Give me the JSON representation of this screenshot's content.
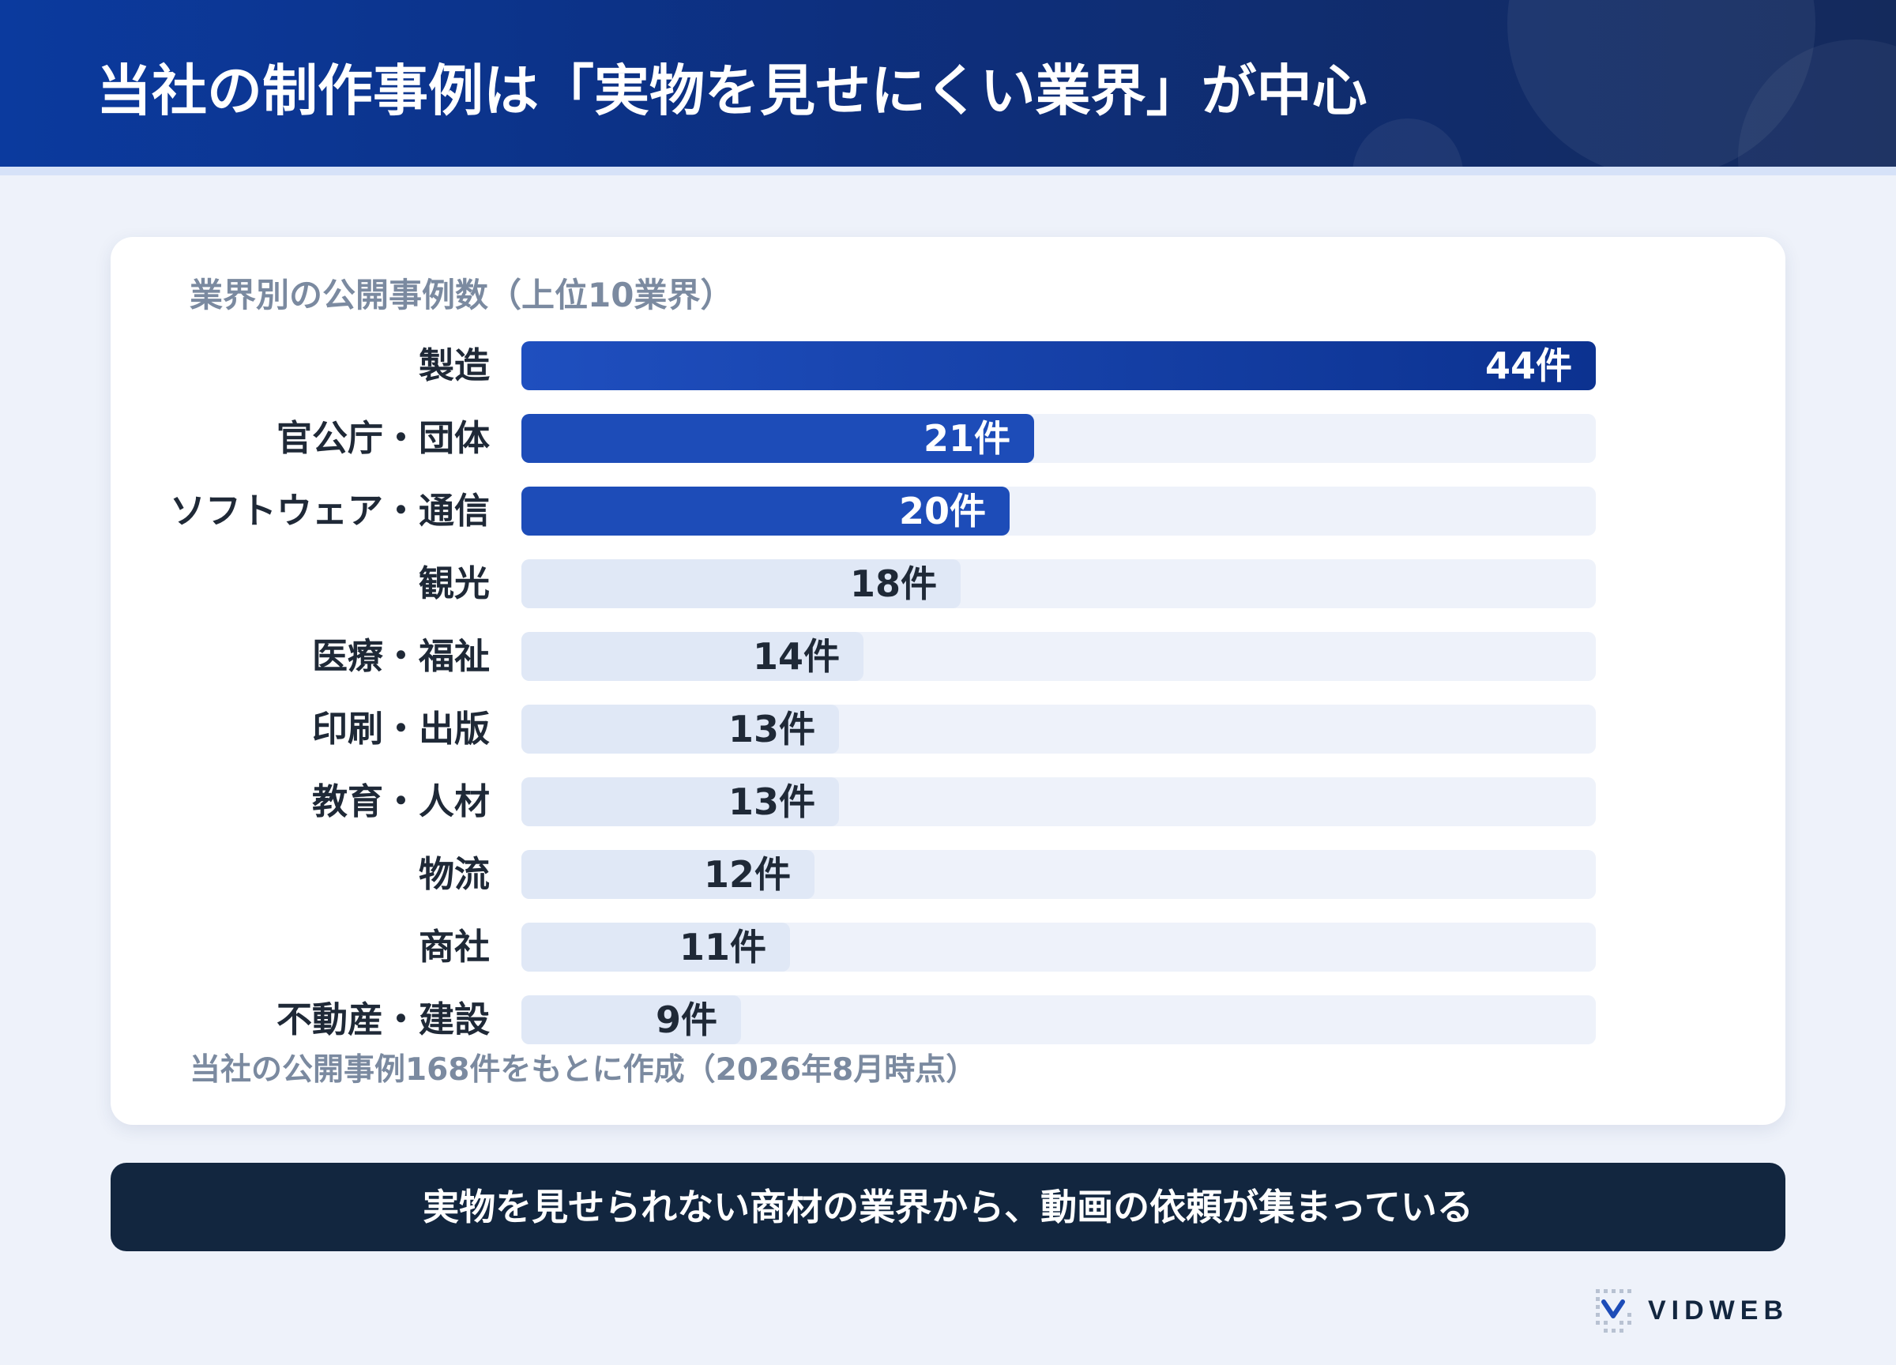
{
  "header": {
    "title": "当社の制作事例は「実物を見せにくい業界」が中心",
    "accent": "#0b3a9e"
  },
  "chart_data": {
    "type": "bar",
    "orientation": "horizontal",
    "title": "業界別の公開事例数（上位10業界）",
    "source_note": "当社の公開事例168件をもとに作成（2026年8月時点）",
    "unit": "件",
    "categories": [
      "製造",
      "官公庁・団体",
      "ソフトウェア・通信",
      "観光",
      "医療・福祉",
      "印刷・出版",
      "教育・人材",
      "物流",
      "商社",
      "不動産・建設"
    ],
    "values": [
      44,
      21,
      20,
      18,
      14,
      13,
      13,
      12,
      11,
      9
    ],
    "value_labels": [
      "44件",
      "21件",
      "20件",
      "18件",
      "14件",
      "13件",
      "13件",
      "12件",
      "11件",
      "9件"
    ],
    "xlim": [
      0,
      44
    ],
    "grid": false,
    "colors": {
      "highlight": "#1d4cb8",
      "top": "#0c3290",
      "muted": "#e0e8f6",
      "track": "#eef2fa"
    }
  },
  "summary": {
    "text": "実物を見せられない商材の業界から、動画の依頼が集まっている"
  },
  "logo": {
    "name": "VIDWEB",
    "icon": "dotted-v-logo-icon"
  }
}
